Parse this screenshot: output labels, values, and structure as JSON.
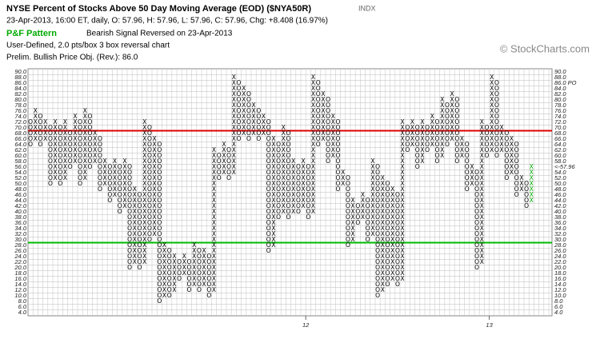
{
  "chart_data": {
    "type": "point-and-figure",
    "title": "NYSE Percent of Stocks Above 50 Day Moving Average (EOD) ($NYA50R)",
    "exchange": "INDX",
    "quote": "23-Apr-2013, 16:00 ET, daily, O: 57.96, H: 57.96, L: 57.96, C: 57.96, Chg: +8.408 (16.97%)",
    "pattern_label": "P&F Pattern",
    "pattern": "Bearish Signal Reversed on 23-Apr-2013",
    "settings_text": "User-Defined, 2.0 pts/box 3 box reversal chart",
    "objective_text": "Prelim. Bullish Price Obj. (Rev.): 86.0",
    "copyright": "© StockCharts.com",
    "box_size": 2,
    "ylim": [
      4,
      90
    ],
    "yticks": [
      {
        "value": 90,
        "label": "90.0"
      },
      {
        "value": 88,
        "label": "88.0"
      },
      {
        "value": 86,
        "label": "86.0"
      },
      {
        "value": 84,
        "label": "84.0"
      },
      {
        "value": 82,
        "label": "82.0"
      },
      {
        "value": 80,
        "label": "80.0"
      },
      {
        "value": 78,
        "label": "78.0"
      },
      {
        "value": 76,
        "label": "76.0"
      },
      {
        "value": 74,
        "label": "74.0"
      },
      {
        "value": 72,
        "label": "72.0"
      },
      {
        "value": 70,
        "label": "70.0"
      },
      {
        "value": 68,
        "label": "68.0"
      },
      {
        "value": 66,
        "label": "66.0"
      },
      {
        "value": 64,
        "label": "64.0"
      },
      {
        "value": 62,
        "label": "62.0"
      },
      {
        "value": 60,
        "label": "60.0"
      },
      {
        "value": 58,
        "label": "58.0"
      },
      {
        "value": 56,
        "label": "56.0"
      },
      {
        "value": 54,
        "label": "54.0"
      },
      {
        "value": 52,
        "label": "52.0"
      },
      {
        "value": 50,
        "label": "50.0"
      },
      {
        "value": 48,
        "label": "48.0"
      },
      {
        "value": 46,
        "label": "46.0"
      },
      {
        "value": 44,
        "label": "44.0"
      },
      {
        "value": 42,
        "label": "42.0"
      },
      {
        "value": 40,
        "label": "40.0"
      },
      {
        "value": 38,
        "label": "38.0"
      },
      {
        "value": 36,
        "label": "36.0"
      },
      {
        "value": 34,
        "label": "34.0"
      },
      {
        "value": 32,
        "label": "32.0"
      },
      {
        "value": 30,
        "label": "30.0"
      },
      {
        "value": 28,
        "label": "28.0"
      },
      {
        "value": 26,
        "label": "26.0"
      },
      {
        "value": 24,
        "label": "24.0"
      },
      {
        "value": 22,
        "label": "22.0"
      },
      {
        "value": 20,
        "label": "20.0"
      },
      {
        "value": 18,
        "label": "18.0"
      },
      {
        "value": 16,
        "label": "16.0"
      },
      {
        "value": 14,
        "label": "14.0"
      },
      {
        "value": 12,
        "label": "12.0"
      },
      {
        "value": 10,
        "label": "10.0"
      },
      {
        "value": 8,
        "label": "8.0"
      },
      {
        "value": 6,
        "label": "6.0"
      },
      {
        "value": 4,
        "label": "4.0"
      }
    ],
    "grid": true,
    "lines": [
      {
        "value": 69,
        "color": "#dd0000"
      },
      {
        "value": 29,
        "color": "#00bb00"
      }
    ],
    "annotations": [
      {
        "side": "right",
        "value": 86,
        "label": "86.0 PO",
        "color": "#00aa00"
      },
      {
        "side": "right",
        "value": 56,
        "label": "<-57.96",
        "color": "#aa0055"
      },
      {
        "side": "left",
        "value": 56,
        "label": "56.0",
        "color": "#dd0000"
      }
    ],
    "x_labels": [
      {
        "column": 56,
        "label": "12"
      },
      {
        "column": 93,
        "label": "13"
      }
    ],
    "color": "#000000",
    "last_column_color": "#00aa00",
    "columns": [
      {
        "type": "O",
        "low": 64,
        "high": 72
      },
      {
        "type": "X",
        "low": 66,
        "high": 76
      },
      {
        "type": "O",
        "low": 64,
        "high": 74
      },
      {
        "type": "X",
        "low": 66,
        "high": 72
      },
      {
        "type": "O",
        "low": 50,
        "high": 70
      },
      {
        "type": "X",
        "low": 52,
        "high": 72
      },
      {
        "type": "O",
        "low": 50,
        "high": 70
      },
      {
        "type": "X",
        "low": 52,
        "high": 72
      },
      {
        "type": "O",
        "low": 56,
        "high": 68
      },
      {
        "type": "X",
        "low": 58,
        "high": 74
      },
      {
        "type": "O",
        "low": 50,
        "high": 72
      },
      {
        "type": "X",
        "low": 52,
        "high": 76
      },
      {
        "type": "O",
        "low": 56,
        "high": 74
      },
      {
        "type": "X",
        "low": 58,
        "high": 68
      },
      {
        "type": "O",
        "low": 48,
        "high": 66
      },
      {
        "type": "X",
        "low": 50,
        "high": 58
      },
      {
        "type": "O",
        "low": 44,
        "high": 56
      },
      {
        "type": "X",
        "low": 46,
        "high": 58
      },
      {
        "type": "O",
        "low": 40,
        "high": 56
      },
      {
        "type": "X",
        "low": 42,
        "high": 58
      },
      {
        "type": "O",
        "low": 20,
        "high": 56
      },
      {
        "type": "X",
        "low": 22,
        "high": 48
      },
      {
        "type": "O",
        "low": 20,
        "high": 46
      },
      {
        "type": "X",
        "low": 22,
        "high": 72
      },
      {
        "type": "O",
        "low": 30,
        "high": 70
      },
      {
        "type": "X",
        "low": 32,
        "high": 66
      },
      {
        "type": "O",
        "low": 8,
        "high": 64
      },
      {
        "type": "X",
        "low": 10,
        "high": 28
      },
      {
        "type": "O",
        "low": 10,
        "high": 26
      },
      {
        "type": "X",
        "low": 12,
        "high": 24
      },
      {
        "type": "O",
        "low": 16,
        "high": 22
      },
      {
        "type": "X",
        "low": 18,
        "high": 24
      },
      {
        "type": "O",
        "low": 12,
        "high": 22
      },
      {
        "type": "X",
        "low": 14,
        "high": 28
      },
      {
        "type": "O",
        "low": 12,
        "high": 26
      },
      {
        "type": "X",
        "low": 14,
        "high": 26
      },
      {
        "type": "O",
        "low": 10,
        "high": 24
      },
      {
        "type": "X",
        "low": 12,
        "high": 62
      },
      {
        "type": "O",
        "low": 52,
        "high": 60
      },
      {
        "type": "X",
        "low": 54,
        "high": 64
      },
      {
        "type": "O",
        "low": 52,
        "high": 62
      },
      {
        "type": "X",
        "low": 54,
        "high": 88
      },
      {
        "type": "O",
        "low": 66,
        "high": 86
      },
      {
        "type": "X",
        "low": 68,
        "high": 84
      },
      {
        "type": "O",
        "low": 66,
        "high": 82
      },
      {
        "type": "X",
        "low": 68,
        "high": 78
      },
      {
        "type": "O",
        "low": 66,
        "high": 76
      },
      {
        "type": "X",
        "low": 68,
        "high": 74
      },
      {
        "type": "O",
        "low": 26,
        "high": 72
      },
      {
        "type": "X",
        "low": 28,
        "high": 66
      },
      {
        "type": "O",
        "low": 38,
        "high": 64
      },
      {
        "type": "X",
        "low": 40,
        "high": 70
      },
      {
        "type": "O",
        "low": 38,
        "high": 68
      },
      {
        "type": "X",
        "low": 40,
        "high": 58
      },
      {
        "type": "O",
        "low": 40,
        "high": 56
      },
      {
        "type": "X",
        "low": 42,
        "high": 58
      },
      {
        "type": "O",
        "low": 38,
        "high": 56
      },
      {
        "type": "X",
        "low": 40,
        "high": 88
      },
      {
        "type": "O",
        "low": 64,
        "high": 86
      },
      {
        "type": "X",
        "low": 66,
        "high": 82
      },
      {
        "type": "O",
        "low": 58,
        "high": 80
      },
      {
        "type": "X",
        "low": 60,
        "high": 74
      },
      {
        "type": "O",
        "low": 48,
        "high": 72
      },
      {
        "type": "X",
        "low": 50,
        "high": 54
      },
      {
        "type": "O",
        "low": 28,
        "high": 52
      },
      {
        "type": "X",
        "low": 30,
        "high": 44
      },
      {
        "type": "O",
        "low": 36,
        "high": 42
      },
      {
        "type": "X",
        "low": 38,
        "high": 46
      },
      {
        "type": "O",
        "low": 30,
        "high": 44
      },
      {
        "type": "X",
        "low": 32,
        "high": 58
      },
      {
        "type": "O",
        "low": 10,
        "high": 56
      },
      {
        "type": "X",
        "low": 12,
        "high": 52
      },
      {
        "type": "O",
        "low": 14,
        "high": 50
      },
      {
        "type": "X",
        "low": 16,
        "high": 48
      },
      {
        "type": "O",
        "low": 14,
        "high": 46
      },
      {
        "type": "X",
        "low": 16,
        "high": 72
      },
      {
        "type": "O",
        "low": 62,
        "high": 70
      },
      {
        "type": "X",
        "low": 64,
        "high": 72
      },
      {
        "type": "O",
        "low": 56,
        "high": 70
      },
      {
        "type": "X",
        "low": 58,
        "high": 72
      },
      {
        "type": "O",
        "low": 62,
        "high": 70
      },
      {
        "type": "X",
        "low": 64,
        "high": 74
      },
      {
        "type": "O",
        "low": 58,
        "high": 72
      },
      {
        "type": "X",
        "low": 60,
        "high": 80
      },
      {
        "type": "O",
        "low": 64,
        "high": 78
      },
      {
        "type": "X",
        "low": 66,
        "high": 82
      },
      {
        "type": "O",
        "low": 58,
        "high": 80
      },
      {
        "type": "X",
        "low": 60,
        "high": 66
      },
      {
        "type": "O",
        "low": 48,
        "high": 64
      },
      {
        "type": "X",
        "low": 50,
        "high": 56
      },
      {
        "type": "O",
        "low": 20,
        "high": 54
      },
      {
        "type": "X",
        "low": 22,
        "high": 72
      },
      {
        "type": "O",
        "low": 60,
        "high": 70
      },
      {
        "type": "X",
        "low": 62,
        "high": 88
      },
      {
        "type": "O",
        "low": 60,
        "high": 86
      },
      {
        "type": "X",
        "low": 62,
        "high": 70
      },
      {
        "type": "O",
        "low": 52,
        "high": 68
      },
      {
        "type": "X",
        "low": 54,
        "high": 66
      },
      {
        "type": "O",
        "low": 46,
        "high": 64
      },
      {
        "type": "X",
        "low": 48,
        "high": 52
      },
      {
        "type": "O",
        "low": 42,
        "high": 50
      },
      {
        "type": "X",
        "low": 44,
        "high": 56
      }
    ]
  }
}
